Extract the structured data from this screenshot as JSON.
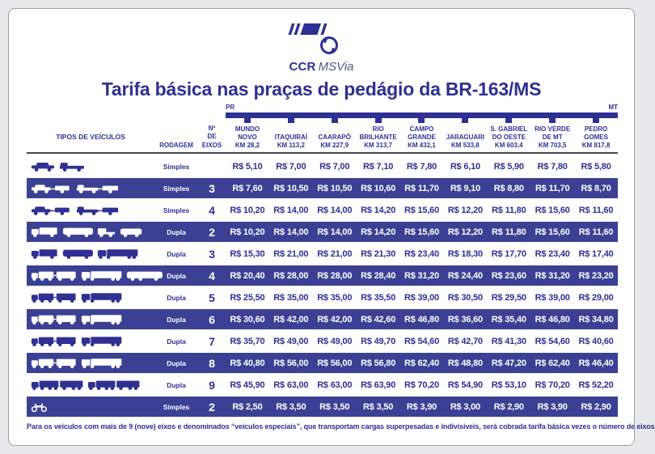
{
  "colors": {
    "brand": "#2e3192",
    "band": "#3b4095",
    "page_bg": "#e9e9ec"
  },
  "brand": {
    "logo_bold": "CCR",
    "logo_light": "MSVia"
  },
  "title": "Tarifa básica nas praças de pedágio da BR-163/MS",
  "route": {
    "start_label": "PR",
    "end_label": "MT"
  },
  "table": {
    "col_headers": {
      "vehicles": "TIPOS DE VEÍCULOS",
      "rodagem": "RODAGEM",
      "eixos": "Nº\nDE\nEIXOS"
    },
    "plazas": [
      {
        "name": "MUNDO NOVO",
        "km": "KM 28,2"
      },
      {
        "name": "ITAQUIRAÍ",
        "km": "KM 113,2"
      },
      {
        "name": "CAARAPÓ",
        "km": "KM 227,9"
      },
      {
        "name": "RIO BRILHANTE",
        "km": "KM 313,7"
      },
      {
        "name": "CAMPO GRANDE",
        "km": "KM 432,1"
      },
      {
        "name": "JARAGUARI",
        "km": "KM 533,8"
      },
      {
        "name": "S. GABRIEL DO OESTE",
        "km": "KM 603,4"
      },
      {
        "name": "RIO VERDE DE MT",
        "km": "KM 703,5"
      },
      {
        "name": "PEDRO GOMES",
        "km": "KM 817,8"
      }
    ],
    "rows": [
      {
        "icons": [
          "car",
          "pickup-truck"
        ],
        "rodagem": "Simples",
        "eixos": "",
        "highlight": false,
        "prices": [
          "R$ 5,10",
          "R$ 7,00",
          "R$ 7,00",
          "R$ 7,10",
          "R$ 7,80",
          "R$ 6,10",
          "R$ 5,90",
          "R$ 7,80",
          "R$ 5,80"
        ]
      },
      {
        "icons": [
          "car-with-trailer",
          "pickup-with-trailer"
        ],
        "rodagem": "Simples",
        "eixos": "3",
        "highlight": true,
        "prices": [
          "R$ 7,60",
          "R$ 10,50",
          "R$ 10,50",
          "R$ 10,60",
          "R$ 11,70",
          "R$ 9,10",
          "R$ 8,80",
          "R$ 11,70",
          "R$ 8,70"
        ]
      },
      {
        "icons": [
          "car-with-trailer",
          "pickup-with-trailer"
        ],
        "rodagem": "Simples",
        "eixos": "4",
        "highlight": false,
        "prices": [
          "R$ 10,20",
          "R$ 14,00",
          "R$ 14,00",
          "R$ 14,20",
          "R$ 15,60",
          "R$ 12,20",
          "R$ 11,80",
          "R$ 15,60",
          "R$ 11,60"
        ]
      },
      {
        "icons": [
          "light-truck",
          "bus",
          "truck-cab",
          "van"
        ],
        "rodagem": "Dupla",
        "eixos": "2",
        "highlight": true,
        "prices": [
          "R$ 10,20",
          "R$ 14,00",
          "R$ 14,00",
          "R$ 14,20",
          "R$ 15,60",
          "R$ 12,20",
          "R$ 11,80",
          "R$ 15,60",
          "R$ 11,60"
        ]
      },
      {
        "icons": [
          "light-truck",
          "bus",
          "semi-truck"
        ],
        "rodagem": "Dupla",
        "eixos": "3",
        "highlight": false,
        "prices": [
          "R$ 15,30",
          "R$ 21,00",
          "R$ 21,00",
          "R$ 21,30",
          "R$ 23,40",
          "R$ 18,30",
          "R$ 17,70",
          "R$ 23,40",
          "R$ 17,40"
        ]
      },
      {
        "icons": [
          "truck-with-trailer",
          "semi-truck",
          "articulated-bus"
        ],
        "rodagem": "Dupla",
        "eixos": "4",
        "highlight": true,
        "prices": [
          "R$ 20,40",
          "R$ 28,00",
          "R$ 28,00",
          "R$ 28,40",
          "R$ 31,20",
          "R$ 24,40",
          "R$ 23,60",
          "R$ 31,20",
          "R$ 23,20"
        ]
      },
      {
        "icons": [
          "truck-with-trailer",
          "semi-truck"
        ],
        "rodagem": "Dupla",
        "eixos": "5",
        "highlight": false,
        "prices": [
          "R$ 25,50",
          "R$ 35,00",
          "R$ 35,00",
          "R$ 35,50",
          "R$ 39,00",
          "R$ 30,50",
          "R$ 29,50",
          "R$ 39,00",
          "R$ 29,00"
        ]
      },
      {
        "icons": [
          "truck-with-trailer",
          "semi-truck"
        ],
        "rodagem": "Dupla",
        "eixos": "6",
        "highlight": true,
        "prices": [
          "R$ 30,60",
          "R$ 42,00",
          "R$ 42,00",
          "R$ 42,60",
          "R$ 46,80",
          "R$ 36,60",
          "R$ 35,40",
          "R$ 46,80",
          "R$ 34,80"
        ]
      },
      {
        "icons": [
          "truck-with-trailer",
          "semi-truck"
        ],
        "rodagem": "Dupla",
        "eixos": "7",
        "highlight": false,
        "prices": [
          "R$ 35,70",
          "R$ 49,00",
          "R$ 49,00",
          "R$ 49,70",
          "R$ 54,60",
          "R$ 42,70",
          "R$ 41,30",
          "R$ 54,60",
          "R$ 40,60"
        ]
      },
      {
        "icons": [
          "truck-with-trailer",
          "semi-truck"
        ],
        "rodagem": "Dupla",
        "eixos": "8",
        "highlight": true,
        "prices": [
          "R$ 40,80",
          "R$ 56,00",
          "R$ 56,00",
          "R$ 56,80",
          "R$ 62,40",
          "R$ 48,80",
          "R$ 47,20",
          "R$ 62,40",
          "R$ 46,40"
        ]
      },
      {
        "icons": [
          "road-train",
          "road-train"
        ],
        "rodagem": "Dupla",
        "eixos": "9",
        "highlight": false,
        "prices": [
          "R$ 45,90",
          "R$ 63,00",
          "R$ 63,00",
          "R$ 63,90",
          "R$ 70,20",
          "R$ 54,90",
          "R$ 53,10",
          "R$ 70,20",
          "R$ 52,20"
        ]
      },
      {
        "icons": [
          "motorcycle"
        ],
        "rodagem": "Simples",
        "eixos": "2",
        "highlight": true,
        "prices": [
          "R$ 2,50",
          "R$ 3,50",
          "R$ 3,50",
          "R$ 3,50",
          "R$ 3,90",
          "R$ 3,00",
          "R$ 2,90",
          "R$ 3,90",
          "R$ 2,90"
        ]
      }
    ]
  },
  "footer_note": "Para os veiculos com mais de 9 (nove) eixos e denominados “veiculos especiais”, que transportam cargas superpesadas e indivisíveis, será cobrada tarifa básica vezes o número de eixos"
}
